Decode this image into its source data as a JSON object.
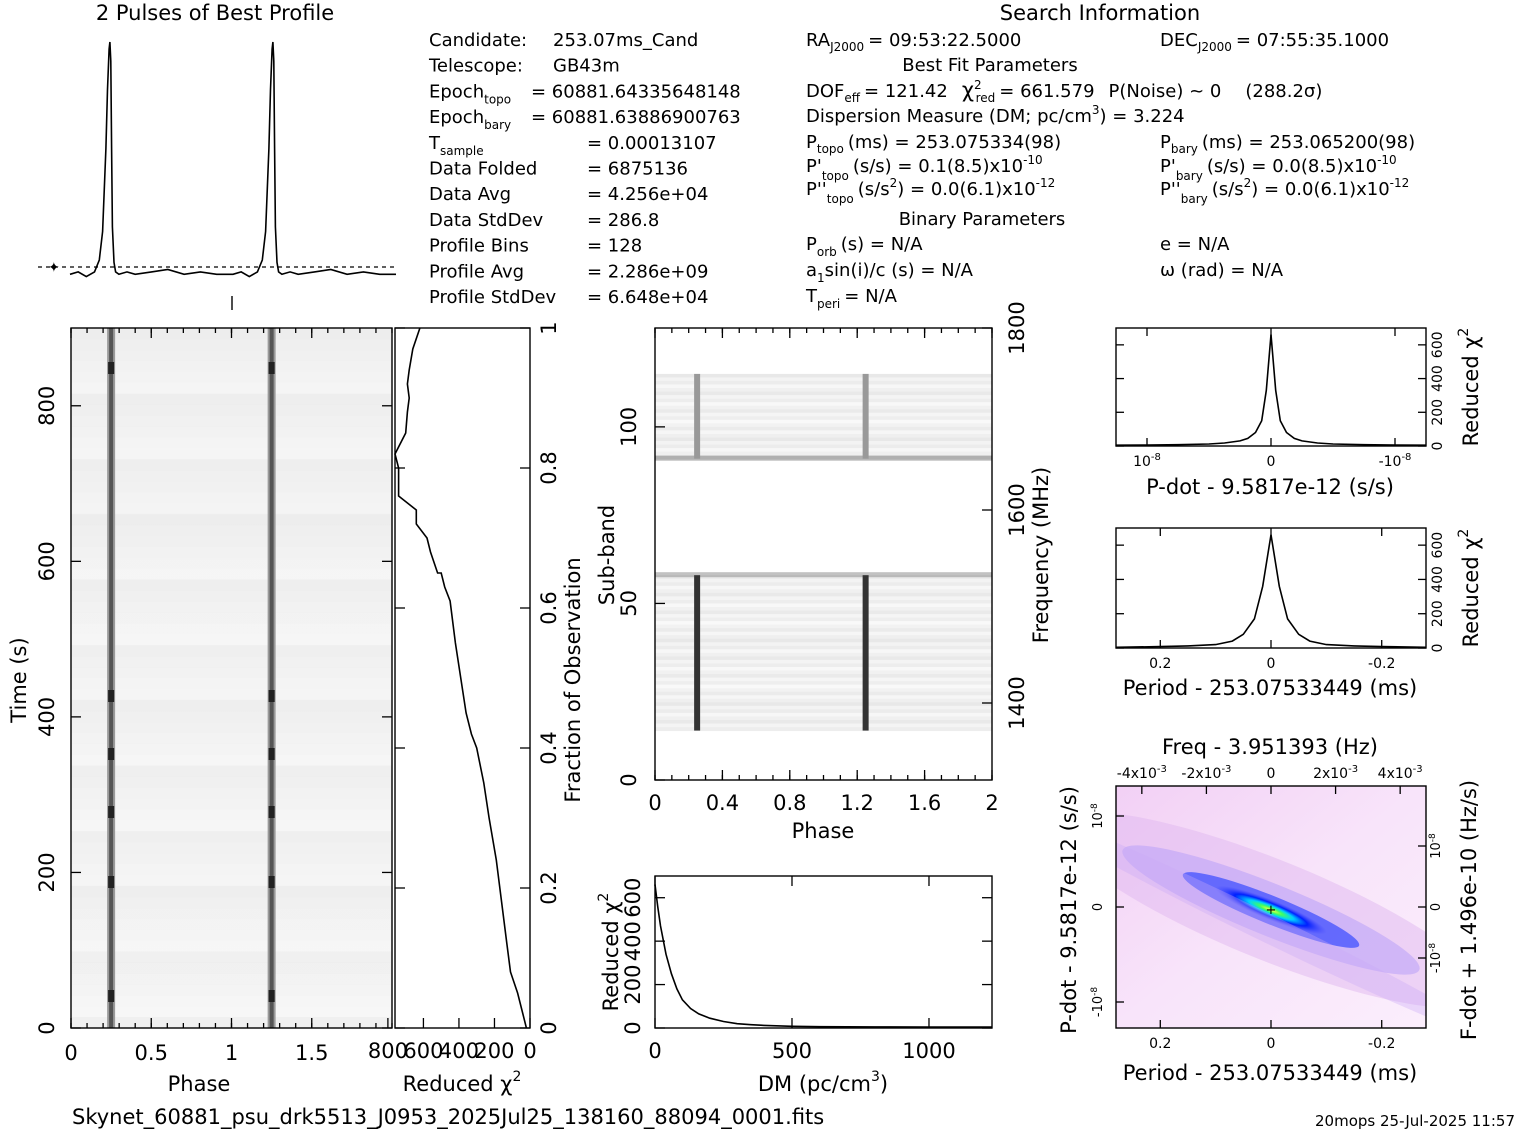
{
  "header": {
    "profile_title": "2 Pulses of Best Profile",
    "search_title": "Search Information",
    "best_fit_title": "Best Fit Parameters",
    "binary_title": "Binary Parameters",
    "filename": "Skynet_60881_psu_drk5513_J0953_2025Jul25_138160_88094_0001.fits",
    "footer_stamp": "20mops 25-Jul-2025 11:57"
  },
  "info_left": [
    {
      "label": "Candidate:",
      "value": "253.07ms_Cand"
    },
    {
      "label": "Telescope:",
      "value": "GB43m"
    },
    {
      "label": "Epoch",
      "sub": "topo",
      "value": "= 60881.64335648148"
    },
    {
      "label": "Epoch",
      "sub": "bary",
      "value": "= 60881.63886900763"
    },
    {
      "label": "T",
      "sub": "sample",
      "value": "= 0.00013107"
    },
    {
      "label": "Data Folded",
      "value": "= 6875136"
    },
    {
      "label": "Data Avg",
      "value": "= 4.256e+04"
    },
    {
      "label": "Data StdDev",
      "value": "= 286.8"
    },
    {
      "label": "Profile Bins",
      "value": "= 128"
    },
    {
      "label": "Profile Avg",
      "value": "= 2.286e+09"
    },
    {
      "label": "Profile StdDev",
      "value": "= 6.648e+04"
    }
  ],
  "info_mid": {
    "ra": "RA",
    "ra_sub": "J2000",
    "ra_value": "= 09:53:22.5000",
    "dec": "DEC",
    "dec_sub": "J2000",
    "dec_value": "= 07:55:35.1000",
    "dof": "DOF",
    "dof_sub": "eff",
    "dof_value": "= 121.42",
    "chi": "χ",
    "chi_sup": "2",
    "chi_sub": "red",
    "chi_value": "= 661.579",
    "pnoise": "P(Noise) ~ 0",
    "sigma": "(288.2σ)",
    "dm_line": "Dispersion Measure (DM; pc/cm",
    "dm_sup": "3",
    "dm_value": ") = 3.224",
    "ptopo": "P",
    "ptopo_sub": "topo",
    "ptopo_value": "(ms) =  253.075334(98)",
    "pdtopo": "P'",
    "pdtopo_sub": "topo",
    "pdtopo_value": "(s/s) =  0.1(8.5)x10",
    "pdtopo_exp": "-10",
    "pddtopo": "P''",
    "pddtopo_sub": "topo",
    "pddtopo_value": "(s/s",
    "pddtopo_sup": "2",
    "pddtopo_value2": ") = 0.0(6.1)x10",
    "pddtopo_exp": "-12",
    "porb": "P",
    "porb_sub": "orb",
    "porb_value": "(s) = N/A",
    "a1": "a",
    "a1_sub": "1",
    "a1_value": "sin(i)/c (s) = N/A",
    "tperi": "T",
    "tperi_sub": "peri",
    "tperi_value": "= N/A"
  },
  "info_right": {
    "pbary": "P",
    "pbary_sub": "bary",
    "pbary_value": "(ms) =  253.065200(98)",
    "pdbary": "P'",
    "pdbary_sub": "bary",
    "pdbary_value": "(s/s) = 0.0(8.5)x10",
    "pdbary_exp": "-10",
    "pddbary": "P''",
    "pddbary_sub": "bary",
    "pddbary_value": "(s/s",
    "pddbary_sup": "2",
    "pddbary_value2": ") = 0.0(6.1)x10",
    "pddbary_exp": "-12",
    "ecc": "e = N/A",
    "omega": "ω (rad) = N/A"
  },
  "chart_data": [
    {
      "id": "profile",
      "type": "line",
      "title": "2 Pulses of Best Profile",
      "x": [
        0.0,
        0.05,
        0.1,
        0.15,
        0.18,
        0.2,
        0.22,
        0.23,
        0.24,
        0.245,
        0.25,
        0.255,
        0.26,
        0.27,
        0.28,
        0.3,
        0.35,
        0.4,
        0.5,
        0.6,
        0.7,
        0.8,
        0.9,
        1.0,
        1.05,
        1.1,
        1.15,
        1.18,
        1.2,
        1.22,
        1.23,
        1.24,
        1.245,
        1.25,
        1.255,
        1.26,
        1.27,
        1.28,
        1.3,
        1.35,
        1.4,
        1.5,
        1.6,
        1.7,
        1.8,
        1.9,
        2.0
      ],
      "y": [
        0.02,
        0.03,
        0.01,
        0.03,
        0.08,
        0.2,
        0.55,
        0.8,
        0.97,
        1.0,
        0.92,
        0.55,
        0.22,
        0.07,
        0.03,
        0.02,
        0.03,
        0.02,
        0.03,
        0.04,
        0.02,
        0.03,
        0.02,
        0.02,
        0.03,
        0.01,
        0.03,
        0.08,
        0.2,
        0.55,
        0.8,
        0.97,
        1.0,
        0.92,
        0.55,
        0.22,
        0.07,
        0.03,
        0.02,
        0.03,
        0.02,
        0.03,
        0.04,
        0.02,
        0.03,
        0.02,
        0.02
      ],
      "baseline": 0.0
    },
    {
      "id": "time_phase",
      "type": "heatmap",
      "xlabel": "Phase",
      "ylabel": "Time (s)",
      "xlim": [
        0,
        2
      ],
      "ylim": [
        0,
        900
      ],
      "xticks": [
        "0",
        "0.5",
        "1",
        "1.5"
      ],
      "yticks": [
        "0",
        "200",
        "400",
        "600",
        "800"
      ],
      "pulse_phases": [
        0.25,
        1.25
      ]
    },
    {
      "id": "time_chi2",
      "type": "line",
      "xlabel": "Reduced χ",
      "xlabel_sup": "2",
      "ylabel": "Fraction of Observation",
      "ylim": [
        0,
        1
      ],
      "xticks": [
        "800",
        "600",
        "400",
        "200",
        "0"
      ],
      "yticks": [
        "0",
        "0.2",
        "0.4",
        "0.6",
        "0.8",
        "1"
      ],
      "x": [
        20,
        40,
        70,
        110,
        130,
        160,
        190,
        230,
        260,
        300,
        330,
        360,
        420,
        450,
        480,
        500,
        520,
        560,
        580,
        640,
        640,
        740,
        740,
        760,
        700,
        690,
        680,
        690,
        680,
        660,
        620
      ],
      "y": [
        0.0,
        0.02,
        0.05,
        0.08,
        0.12,
        0.18,
        0.24,
        0.3,
        0.35,
        0.4,
        0.42,
        0.45,
        0.55,
        0.61,
        0.63,
        0.65,
        0.65,
        0.68,
        0.7,
        0.72,
        0.74,
        0.76,
        0.8,
        0.82,
        0.85,
        0.88,
        0.9,
        0.92,
        0.94,
        0.97,
        1.0
      ]
    },
    {
      "id": "subband_phase",
      "type": "heatmap",
      "xlabel": "Phase",
      "ylabel": "Sub-band",
      "y2label": "Frequency (MHz)",
      "xlim": [
        0,
        2
      ],
      "ylim": [
        0,
        128
      ],
      "xticks": [
        "0",
        "0.4",
        "0.8",
        "1.2",
        "1.6",
        "2"
      ],
      "yticks": [
        "0",
        "50",
        "100"
      ],
      "y2ticks": [
        "1400",
        "1600",
        "1800"
      ],
      "active_bands": [
        [
          14,
          58
        ],
        [
          91,
          115
        ]
      ],
      "pulse_phases": [
        0.25,
        1.25
      ]
    },
    {
      "id": "dm_chi2",
      "type": "line",
      "xlabel": "DM (pc/cm",
      "xlabel_sup": "3",
      "xlabel_end": ")",
      "ylabel": "Reduced χ",
      "ylabel_sup": "2",
      "xlim": [
        0,
        1230
      ],
      "ylim": [
        0,
        700
      ],
      "xticks": [
        "0",
        "500",
        "1000"
      ],
      "yticks": [
        "0",
        "200",
        "400",
        "600"
      ],
      "x": [
        0,
        10,
        20,
        40,
        60,
        80,
        100,
        130,
        160,
        200,
        250,
        300,
        350,
        400,
        500,
        600,
        800,
        1000,
        1230
      ],
      "y": [
        661,
        560,
        470,
        340,
        250,
        180,
        130,
        90,
        65,
        45,
        30,
        20,
        15,
        12,
        8,
        6,
        5,
        4,
        4
      ]
    },
    {
      "id": "pdot_chi2",
      "type": "line",
      "xlabel": "P-dot - 9.5817e-12 (s/s)",
      "ylabel": "Reduced χ",
      "ylabel_sup": "2",
      "xticks": [
        "10",
        "0",
        "-10"
      ],
      "xtick_exp": "-8",
      "yticks": [
        "0",
        "200",
        "400",
        "600"
      ],
      "x": [
        -1,
        -0.8,
        -0.6,
        -0.4,
        -0.3,
        -0.2,
        -0.15,
        -0.1,
        -0.06,
        -0.03,
        0,
        0.03,
        0.06,
        0.1,
        0.15,
        0.2,
        0.3,
        0.4,
        0.6,
        0.8,
        1
      ],
      "y": [
        5,
        6,
        8,
        12,
        18,
        30,
        45,
        80,
        150,
        330,
        661,
        330,
        150,
        80,
        45,
        30,
        18,
        12,
        8,
        6,
        5
      ]
    },
    {
      "id": "period_chi2",
      "type": "line",
      "xlabel": "Period - 253.07533449 (ms)",
      "ylabel": "Reduced χ",
      "ylabel_sup": "2",
      "xticks": [
        "0.2",
        "0",
        "-0.2"
      ],
      "yticks": [
        "0",
        "200",
        "400",
        "600"
      ],
      "x": [
        0.28,
        0.2,
        0.15,
        0.1,
        0.07,
        0.05,
        0.03,
        0.015,
        0,
        -0.015,
        -0.03,
        -0.05,
        -0.07,
        -0.1,
        -0.15,
        -0.2,
        -0.28
      ],
      "y": [
        4,
        8,
        12,
        20,
        40,
        80,
        170,
        360,
        661,
        360,
        170,
        80,
        40,
        20,
        12,
        8,
        4
      ]
    },
    {
      "id": "p_pdot_plane",
      "type": "heatmap",
      "title": "Freq - 3.951393 (Hz)",
      "xlabel": "Period - 253.07533449 (ms)",
      "ylabel": "P-dot - 9.5817e-12 (s/s)",
      "y2label": "F-dot + 1.496e-10 (Hz/s)",
      "xticks": [
        "0.2",
        "0",
        "-0.2"
      ],
      "top_ticks": [
        "-4x10",
        "-2x10",
        "0",
        "2x10",
        "4x10"
      ],
      "top_exp": "-3",
      "yticks": [
        "10",
        "0",
        "-10"
      ],
      "ytick_exp": "-8",
      "y2ticks": [
        "10",
        "0",
        "-10"
      ],
      "y2tick_exp": "-8"
    }
  ]
}
